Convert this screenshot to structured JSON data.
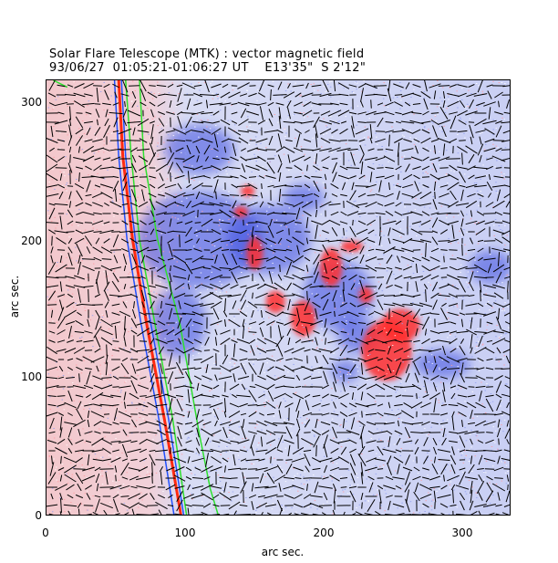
{
  "title": {
    "line1": "Solar Flare Telescope (MTK) : vector magnetic field",
    "line2": "93/06/27  01:05:21-01:06:27 UT    E13'35\"  S 2'12\""
  },
  "axes": {
    "xlabel": "arc sec.",
    "ylabel": "arc sec.",
    "xticks": [
      "0",
      "100",
      "200",
      "300"
    ],
    "yticks": [
      "0",
      "100",
      "200",
      "300"
    ],
    "xlim": [
      0,
      335
    ],
    "ylim": [
      0,
      315
    ]
  },
  "colors": {
    "positive": "#ff3030",
    "negative": "#3a4de0",
    "limb_red": "#ff2a10",
    "limb_blue": "#2050ff",
    "limb_green": "#2ee02e"
  },
  "regions": {
    "positive_patches": [
      {
        "x": 245,
        "y": 120,
        "rx": 18,
        "ry": 22
      },
      {
        "x": 255,
        "y": 138,
        "rx": 14,
        "ry": 12
      },
      {
        "x": 205,
        "y": 180,
        "rx": 8,
        "ry": 14
      },
      {
        "x": 185,
        "y": 143,
        "rx": 9,
        "ry": 13
      },
      {
        "x": 165,
        "y": 155,
        "rx": 7,
        "ry": 8
      },
      {
        "x": 150,
        "y": 190,
        "rx": 6,
        "ry": 12
      },
      {
        "x": 230,
        "y": 160,
        "rx": 5,
        "ry": 6
      },
      {
        "x": 220,
        "y": 195,
        "rx": 8,
        "ry": 4
      },
      {
        "x": 140,
        "y": 220,
        "rx": 5,
        "ry": 4
      },
      {
        "x": 145,
        "y": 235,
        "rx": 5,
        "ry": 4
      }
    ],
    "negative_patches": [
      {
        "x": 110,
        "y": 200,
        "rx": 45,
        "ry": 35
      },
      {
        "x": 160,
        "y": 200,
        "rx": 30,
        "ry": 25
      },
      {
        "x": 210,
        "y": 160,
        "rx": 25,
        "ry": 25
      },
      {
        "x": 215,
        "y": 105,
        "rx": 10,
        "ry": 8
      },
      {
        "x": 225,
        "y": 130,
        "rx": 15,
        "ry": 12
      },
      {
        "x": 95,
        "y": 140,
        "rx": 20,
        "ry": 25
      },
      {
        "x": 320,
        "y": 180,
        "rx": 15,
        "ry": 12
      },
      {
        "x": 285,
        "y": 110,
        "rx": 20,
        "ry": 10
      },
      {
        "x": 110,
        "y": 265,
        "rx": 25,
        "ry": 18
      },
      {
        "x": 185,
        "y": 230,
        "rx": 15,
        "ry": 10
      }
    ]
  }
}
